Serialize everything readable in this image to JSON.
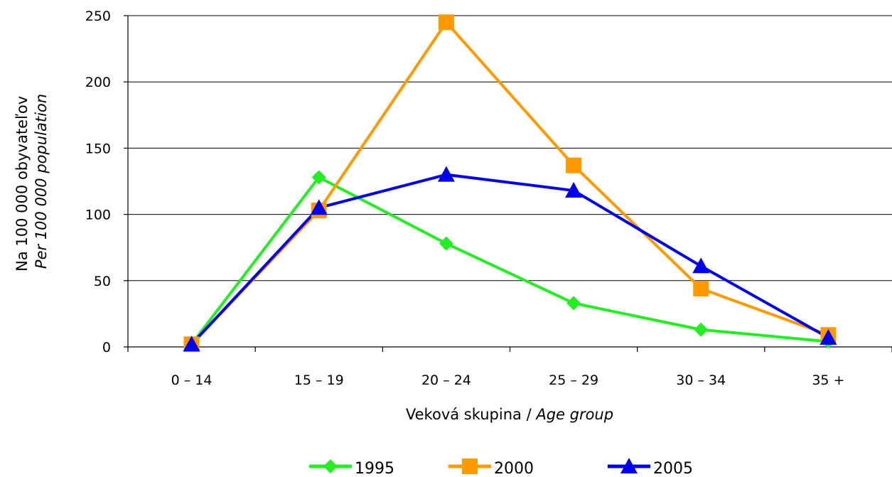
{
  "chart_data": {
    "type": "line",
    "categories": [
      "0 – 14",
      "15 – 19",
      "20 – 24",
      "25 – 29",
      "30 – 34",
      "35 +"
    ],
    "series": [
      {
        "name": "1995",
        "values": [
          2,
          128,
          78,
          33,
          13,
          4
        ],
        "color": "#22ee22",
        "marker": "diamond"
      },
      {
        "name": "2000",
        "values": [
          2,
          103,
          245,
          137,
          44,
          9
        ],
        "color": "#ff9900",
        "marker": "square"
      },
      {
        "name": "2005",
        "values": [
          2,
          105,
          130,
          118,
          61,
          7
        ],
        "color": "#0000ee",
        "marker": "triangle"
      }
    ],
    "ylim": [
      0,
      250
    ],
    "yticks": [
      0,
      50,
      100,
      150,
      200,
      250
    ],
    "ytick_labels": [
      "0",
      "50",
      "100",
      "150",
      "200",
      "250"
    ],
    "ylabel": "Na 100 000 obyvateľov",
    "ylabel_italic": "Per 100 000 population",
    "xlabel": "Veková skupina / ",
    "xlabel_italic": "Age group",
    "grid": true,
    "legend_position": "bottom"
  }
}
